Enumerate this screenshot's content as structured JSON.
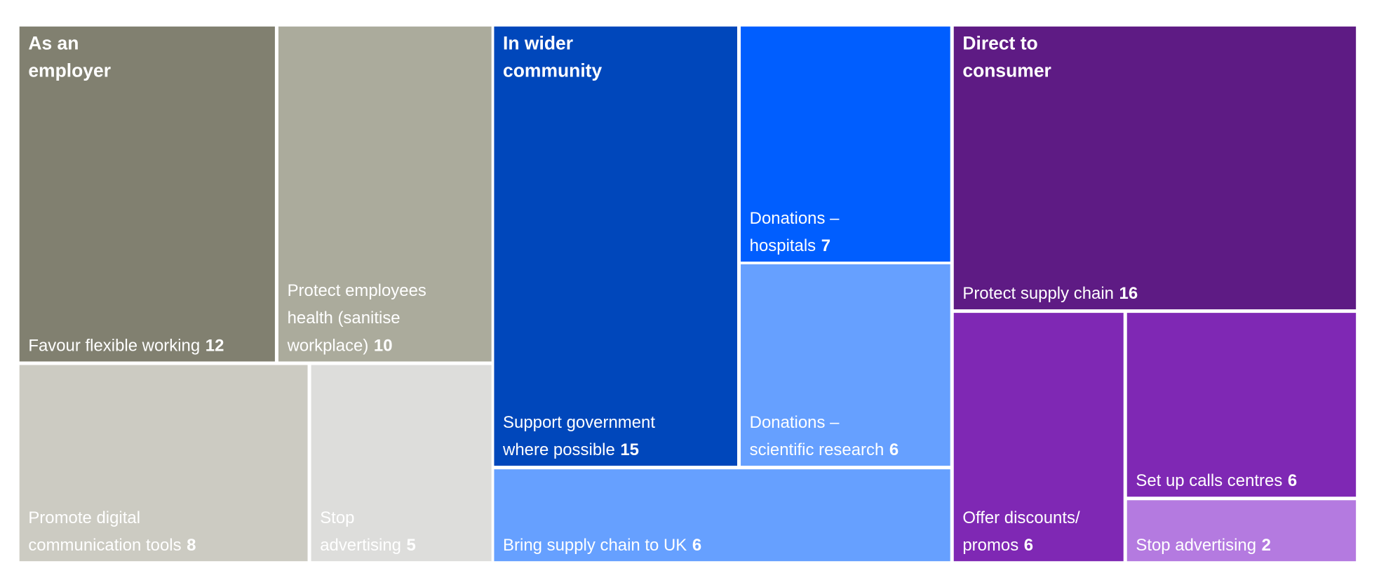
{
  "chart_data": {
    "type": "treemap",
    "groups": [
      {
        "name": "As an employer",
        "items": [
          {
            "label": "Favour flexible working",
            "value": 12,
            "color": "#818070"
          },
          {
            "label": "Protect employees health (sanitise workplace)",
            "value": 10,
            "color": "#abab9c"
          },
          {
            "label": "Promote digital communication tools",
            "value": 8,
            "color": "#cccbc2"
          },
          {
            "label": "Stop advertising",
            "value": 5,
            "color": "#dddddb"
          }
        ]
      },
      {
        "name": "In wider community",
        "items": [
          {
            "label": "Support government where possible",
            "value": 15,
            "color": "#0047bb"
          },
          {
            "label": "Donations – hospitals",
            "value": 7,
            "color": "#005eff"
          },
          {
            "label": "Donations – scientific research",
            "value": 6,
            "color": "#66a0ff"
          },
          {
            "label": "Bring supply chain to UK",
            "value": 6,
            "color": "#66a0ff"
          }
        ]
      },
      {
        "name": "Direct to consumer",
        "items": [
          {
            "label": "Protect supply chain",
            "value": 16,
            "color": "#5e1b84"
          },
          {
            "label": "Offer discounts/ promos",
            "value": 6,
            "color": "#7f28b4"
          },
          {
            "label": "Set up calls centres",
            "value": 6,
            "color": "#7f28b4"
          },
          {
            "label": "Stop advertising",
            "value": 2,
            "color": "#b47ae0"
          }
        ]
      }
    ]
  }
}
